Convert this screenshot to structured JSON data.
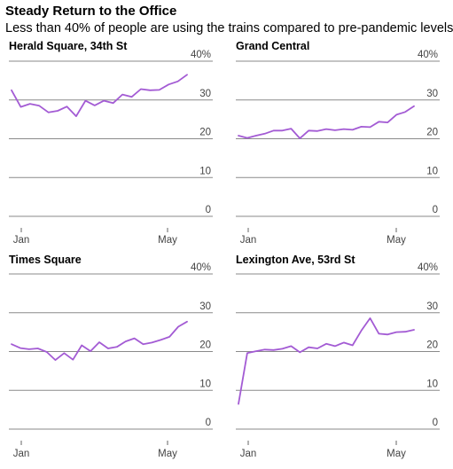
{
  "title": "Steady Return to the Office",
  "subtitle": "Less than 40% of people are using the trains compared to pre-pandemic levels",
  "colors": {
    "line": "#a35bd4",
    "grid": "#8a8a8a",
    "text": "#444444"
  },
  "chart_data": [
    {
      "type": "line",
      "title": "Herald Square, 34th St",
      "x_tick_labels": [
        "Jan",
        "May"
      ],
      "y_tick_labels": [
        "0",
        "10",
        "20",
        "30",
        "40%"
      ],
      "y_ticks": [
        0,
        10,
        20,
        30,
        40
      ],
      "ylim": [
        0,
        40
      ],
      "grid": true,
      "values": [
        32.5,
        28.2,
        29.0,
        28.5,
        26.8,
        27.2,
        28.3,
        25.8,
        29.8,
        28.6,
        29.8,
        29.2,
        31.4,
        30.8,
        32.8,
        32.5,
        32.6,
        34.0,
        34.8,
        36.5
      ]
    },
    {
      "type": "line",
      "title": "Grand Central",
      "x_tick_labels": [
        "Jan",
        "May"
      ],
      "y_tick_labels": [
        "0",
        "10",
        "20",
        "30",
        "40%"
      ],
      "y_ticks": [
        0,
        10,
        20,
        30,
        40
      ],
      "ylim": [
        0,
        40
      ],
      "grid": true,
      "values": [
        20.8,
        20.2,
        20.8,
        21.3,
        22.1,
        22.1,
        22.6,
        20.1,
        22.1,
        22.0,
        22.5,
        22.2,
        22.5,
        22.3,
        23.1,
        23.0,
        24.4,
        24.2,
        26.2,
        26.9,
        28.4
      ]
    },
    {
      "type": "line",
      "title": "Times Square",
      "x_tick_labels": [
        "Jan",
        "May"
      ],
      "y_tick_labels": [
        "0",
        "10",
        "20",
        "30",
        "40%"
      ],
      "y_ticks": [
        0,
        10,
        20,
        30,
        40
      ],
      "ylim": [
        0,
        40
      ],
      "grid": true,
      "values": [
        21.9,
        20.9,
        20.6,
        20.8,
        19.9,
        17.8,
        19.6,
        17.9,
        21.6,
        20.1,
        22.4,
        20.8,
        21.2,
        22.6,
        23.4,
        21.9,
        22.3,
        23.0,
        23.8,
        26.4,
        27.7
      ]
    },
    {
      "type": "line",
      "title": "Lexington Ave, 53rd St",
      "x_tick_labels": [
        "Jan",
        "May"
      ],
      "y_tick_labels": [
        "0",
        "10",
        "20",
        "30",
        "40%"
      ],
      "y_ticks": [
        0,
        10,
        20,
        30,
        40
      ],
      "ylim": [
        0,
        40
      ],
      "grid": true,
      "values": [
        6.5,
        19.6,
        20.1,
        20.5,
        20.4,
        20.7,
        21.4,
        19.8,
        21.1,
        20.8,
        22.0,
        21.4,
        22.3,
        21.6,
        25.4,
        28.6,
        24.6,
        24.4,
        25.0,
        25.1,
        25.6
      ]
    }
  ]
}
